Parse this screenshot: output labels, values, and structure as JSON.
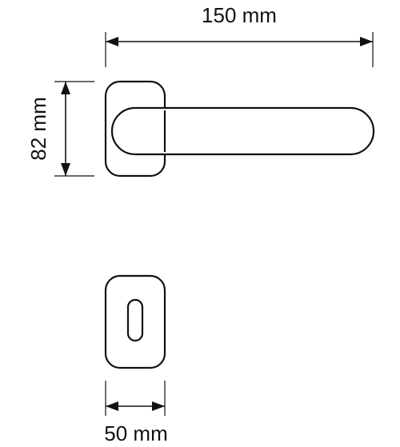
{
  "dimensions": {
    "length": {
      "label": "150 mm"
    },
    "height": {
      "label": "82 mm"
    },
    "rose_width": {
      "label": "50 mm"
    }
  },
  "colors": {
    "line": "#111111",
    "background": "#ffffff"
  }
}
